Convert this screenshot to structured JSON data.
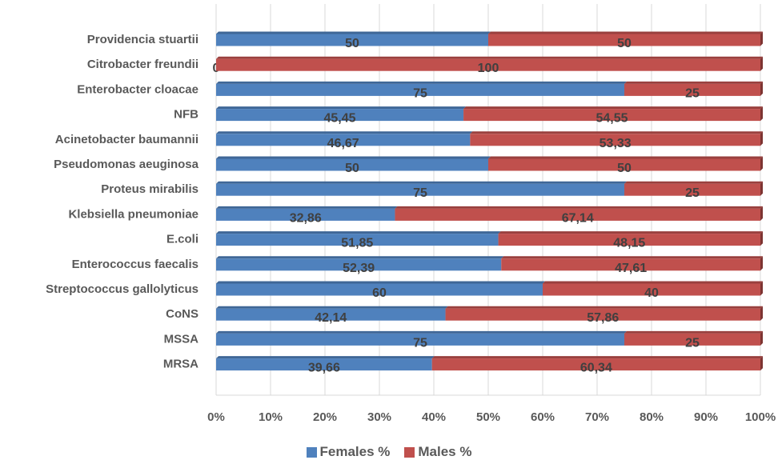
{
  "chart_data": {
    "type": "bar",
    "orientation": "horizontal",
    "stacked": "percent",
    "categories": [
      "Providencia stuartii",
      "Citrobacter freundii",
      "Enterobacter cloacae",
      "NFB",
      "Acinetobacter baumannii",
      "Pseudomonas aeuginosa",
      "Proteus mirabilis",
      "Klebsiella pneumoniae",
      "E.coli",
      "Enterococcus faecalis",
      "Streptococcus gallolyticus",
      "CoNS",
      "MSSA",
      "MRSA"
    ],
    "series": [
      {
        "name": "Females %",
        "color": "#4f81bd",
        "values": [
          50,
          0,
          75,
          45.45,
          46.67,
          50,
          75,
          32.86,
          51.85,
          52.39,
          60,
          42.14,
          75,
          39.66
        ],
        "labels": [
          "50",
          "0",
          "75",
          "45,45",
          "46,67",
          "50",
          "75",
          "32,86",
          "51,85",
          "52,39",
          "60",
          "42,14",
          "75",
          "39,66"
        ]
      },
      {
        "name": "Males %",
        "color": "#c0504d",
        "values": [
          50,
          100,
          25,
          54.55,
          53.33,
          50,
          25,
          67.14,
          48.15,
          47.61,
          40,
          57.86,
          25,
          60.34
        ],
        "labels": [
          "50",
          "100",
          "25",
          "54,55",
          "53,33",
          "50",
          "25",
          "67,14",
          "48,15",
          "47,61",
          "40",
          "57,86",
          "25",
          "60,34"
        ]
      }
    ],
    "xlim": [
      0,
      100
    ],
    "x_ticks": [
      "0%",
      "10%",
      "20%",
      "30%",
      "40%",
      "50%",
      "60%",
      "70%",
      "80%",
      "90%",
      "100%"
    ],
    "grid": true,
    "legend_position": "bottom",
    "title": "",
    "xlabel": "",
    "ylabel": ""
  }
}
